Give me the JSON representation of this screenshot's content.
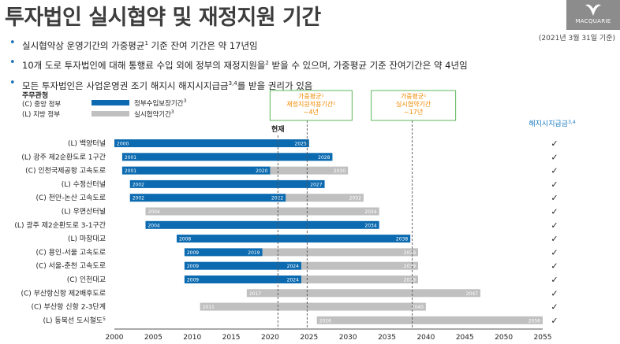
{
  "header": {
    "title": "투자법인 실시협약 및 재정지원 기간",
    "logo_text": "MACQUARIE",
    "as_of": "(2021년 3월 31일 기준)"
  },
  "bullets": [
    {
      "pre": "실시협약상 운영기간의 가중평균",
      "sup": "1",
      "post": " 기준 잔여 기간은 약 17년임"
    },
    {
      "pre": "10개 도로 투자법인에 대해 통행료 수입 외에 정부의 재정지원을",
      "sup": "2",
      "post": " 받을 수 있으며, 가중평균 기준 잔여기간은 약 4년임"
    },
    {
      "pre": "모든 투자법인은 사업운영권 조기 해지시 해지시지급금",
      "sup": "3,4",
      "post": "를 받을 권리가 있음"
    }
  ],
  "legend": {
    "heading": "주무관청",
    "central": "(C) 중앙 정부",
    "local": "(L) 지방 정부",
    "series1": "정부수입보장기간",
    "series1_sup": "3",
    "series2": "실시협약기간",
    "series2_sup": "3",
    "color1": "#0b6ab0",
    "color2": "#c0c0c0"
  },
  "chart_data": {
    "type": "bar",
    "orientation": "horizontal-range",
    "x_ticks": [
      2000,
      2005,
      2010,
      2015,
      2020,
      2025,
      2030,
      2035,
      2040,
      2045,
      2050,
      2055
    ],
    "xlim": [
      2000,
      2055
    ],
    "now_label": "현재",
    "now_year": 2021,
    "markers": [
      {
        "year": 2021,
        "label": ""
      },
      {
        "year": 2024.75,
        "label": "가중평균¹\n재정지원적용기간²\n~4년"
      },
      {
        "year": 2038.25,
        "label": "가중평균¹\n실시협약기간\n~17년"
      }
    ],
    "callouts": [
      {
        "lines": [
          "가중평균¹",
          "재정지원적용기간²",
          "~4년"
        ]
      },
      {
        "lines": [
          "가중평균¹",
          "실시협약기간",
          "~17년"
        ]
      }
    ],
    "termination_header": "해지시지급금",
    "termination_sup": "3,4",
    "check_symbol": "✓",
    "series": [
      {
        "name": "정부수입보장기간",
        "color": "#0b6ab0"
      },
      {
        "name": "실시협약기간",
        "color": "#c0c0c0"
      }
    ],
    "rows": [
      {
        "label": "(L) 백양터널",
        "start": 2000,
        "blue_end": 2025,
        "blue_label": "2025",
        "gray_end": null,
        "gray_label": ""
      },
      {
        "label": "(L) 광주 제2순환도로 1구간",
        "start": 2001,
        "blue_end": 2028,
        "blue_label": "2028",
        "gray_end": null,
        "gray_label": ""
      },
      {
        "label": "(C) 인천국제공항 고속도로",
        "start": 2001,
        "blue_end": 2020,
        "blue_label": "2020",
        "gray_end": 2030,
        "gray_label": "2030"
      },
      {
        "label": "(L) 수정산터널",
        "start": 2002,
        "blue_end": 2027,
        "blue_label": "2027",
        "gray_end": null,
        "gray_label": ""
      },
      {
        "label": "(C) 천안-논산 고속도로",
        "start": 2002,
        "blue_end": 2022,
        "blue_label": "2022",
        "gray_end": 2032,
        "gray_label": "2032"
      },
      {
        "label": "(L) 우면산터널",
        "start": 2004,
        "blue_end": null,
        "blue_label": "",
        "gray_end": 2034,
        "gray_label": "2034"
      },
      {
        "label": "(L) 광주 제2순환도로 3-1구간",
        "start": 2004,
        "blue_end": 2034,
        "blue_label": "2034",
        "gray_end": null,
        "gray_label": ""
      },
      {
        "label": "(L) 마창대교",
        "start": 2008,
        "blue_end": 2038,
        "blue_label": "2038",
        "gray_end": null,
        "gray_label": ""
      },
      {
        "label": "(C) 용인-서울 고속도로",
        "start": 2009,
        "blue_end": 2019,
        "blue_label": "2019",
        "gray_end": 2039,
        "gray_label": "2039"
      },
      {
        "label": "(C) 서울-춘천 고속도로",
        "start": 2009,
        "blue_end": 2024,
        "blue_label": "2024",
        "gray_end": 2039,
        "gray_label": "2039"
      },
      {
        "label": "(C) 인천대교",
        "start": 2009,
        "blue_end": 2024,
        "blue_label": "2024",
        "gray_end": 2039,
        "gray_label": "2039"
      },
      {
        "label": "(C) 부산항신항 제2배후도로",
        "start": 2017,
        "blue_end": null,
        "blue_label": "",
        "gray_end": 2047,
        "gray_label": "2047"
      },
      {
        "label": "(C) 부산항 신항 2-3단계",
        "start": 2011,
        "blue_end": null,
        "blue_label": "",
        "gray_end": 2040,
        "gray_label": "2040"
      },
      {
        "label": "(L) 동북선 도시철도",
        "label_sup": "5",
        "start": 2026,
        "blue_end": null,
        "blue_label": "",
        "gray_end": 2056,
        "gray_label": "2056"
      }
    ]
  }
}
